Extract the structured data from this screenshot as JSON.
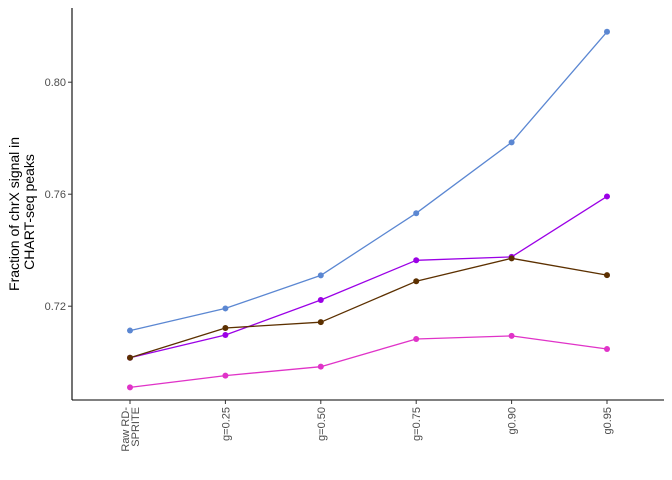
{
  "chart_data": {
    "type": "line",
    "title": "",
    "xlabel": "",
    "ylabel_lines": [
      "Fraction of chrX signal in",
      "CHART-seq peaks"
    ],
    "categories": [
      {
        "lines": [
          "Raw RD-",
          "SPRITE"
        ]
      },
      {
        "lines": [
          "g=0.25"
        ]
      },
      {
        "lines": [
          "g=0.50"
        ]
      },
      {
        "lines": [
          "g=0.75"
        ]
      },
      {
        "lines": [
          "g0.90"
        ]
      },
      {
        "lines": [
          "g0.95"
        ]
      }
    ],
    "yticks": [
      0.72,
      0.76,
      0.8
    ],
    "ytick_labels": [
      "0.72",
      "0.76",
      "0.80"
    ],
    "ylim": [
      0.6865,
      0.8265
    ],
    "grid": false,
    "legend": "none",
    "series": [
      {
        "name": "series-blue",
        "color": "#5b87d2",
        "values": [
          0.7113,
          0.7192,
          0.731,
          0.7532,
          0.7785,
          0.818
        ]
      },
      {
        "name": "series-purple",
        "color": "#9b00e6",
        "values": [
          0.7016,
          0.7097,
          0.7222,
          0.7364,
          0.7376,
          0.7592
        ]
      },
      {
        "name": "series-brown",
        "color": "#5c3000",
        "values": [
          0.7016,
          0.7122,
          0.7143,
          0.7289,
          0.7371,
          0.7311
        ]
      },
      {
        "name": "series-magenta",
        "color": "#e033c8",
        "values": [
          0.691,
          0.6952,
          0.6984,
          0.7083,
          0.7094,
          0.7047
        ]
      }
    ]
  }
}
